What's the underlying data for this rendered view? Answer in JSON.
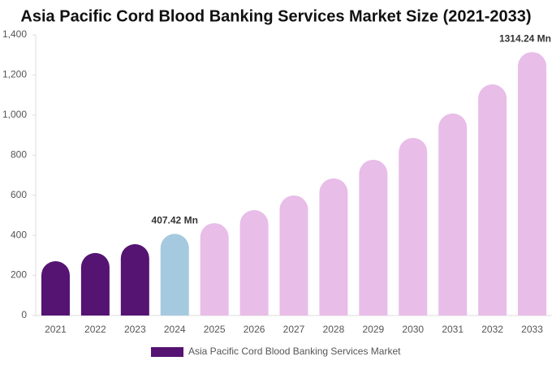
{
  "chart_data": {
    "type": "bar",
    "title": "Asia Pacific Cord Blood Banking Services Market Size (2021-2033)",
    "categories": [
      "2021",
      "2022",
      "2023",
      "2024",
      "2025",
      "2026",
      "2027",
      "2028",
      "2029",
      "2030",
      "2031",
      "2032",
      "2033"
    ],
    "series": [
      {
        "name": "Asia Pacific Cord Blood Banking Services Market",
        "color": "#551372",
        "colors": [
          "#551372",
          "#551372",
          "#551372",
          "#a5cadf",
          "#e8bde8",
          "#e8bde8",
          "#e8bde8",
          "#e8bde8",
          "#e8bde8",
          "#e8bde8",
          "#e8bde8",
          "#e8bde8",
          "#e8bde8"
        ],
        "values": [
          271,
          312,
          356,
          407.42,
          461,
          526,
          599,
          684,
          777,
          886,
          1008,
          1153,
          1314.24
        ],
        "value_labels": [
          null,
          null,
          null,
          "407.42 Mn",
          null,
          null,
          null,
          null,
          null,
          null,
          null,
          null,
          "1314.24 Mn"
        ]
      }
    ],
    "ylim": [
      0,
      1400
    ],
    "yticks": [
      0,
      200,
      400,
      600,
      800,
      {
        "value": 1000,
        "label": "1,000"
      },
      {
        "value": 1200,
        "label": "1,200"
      },
      {
        "value": 1400,
        "label": "1,400"
      }
    ],
    "grid": false
  }
}
